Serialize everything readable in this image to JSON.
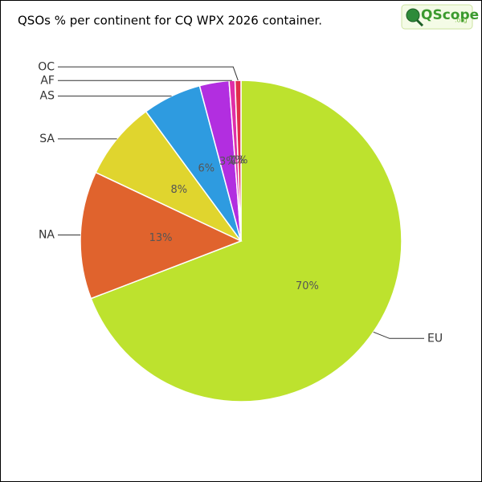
{
  "chart_data": {
    "type": "pie",
    "title": "QSOs % per continent for CQ WPX 2026 container.",
    "logo": "QScope",
    "logo_suffix": ".org",
    "categories": [
      "EU",
      "NA",
      "SA",
      "AS",
      null,
      "AF",
      "OC"
    ],
    "values": [
      70,
      13,
      8,
      6,
      3,
      0.6,
      0.6
    ],
    "value_labels": [
      "70%",
      "13%",
      "8%",
      "6%",
      "3%",
      "1%",
      "1%"
    ],
    "colors": [
      "#bde22e",
      "#e0632d",
      "#e0d52e",
      "#2e9be0",
      "#b22ee0",
      "#e02ea8",
      "#e02e4c"
    ]
  }
}
